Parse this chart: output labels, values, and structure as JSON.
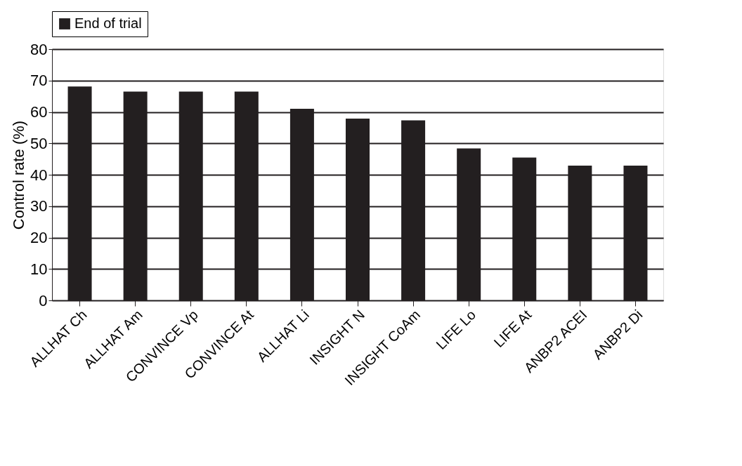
{
  "chart_data": {
    "type": "bar",
    "ylabel": "Control rate (%)",
    "categories": [
      "ALLHAT Ch",
      "ALLHAT Am",
      "CONVINCE Vp",
      "CONVINCE At",
      "ALLHAT Li",
      "INSIGHT N",
      "INSIGHT CoAm",
      "LIFE Lo",
      "LIFE At",
      "ANBP2 ACEI",
      "ANBP2 Di"
    ],
    "series": [
      {
        "name": "End of trial",
        "color": "#231f20",
        "values": [
          68.1,
          66.5,
          66.5,
          66.5,
          61.0,
          57.9,
          57.3,
          48.4,
          45.5,
          42.9,
          42.9
        ]
      }
    ],
    "ylim": [
      0,
      80
    ],
    "yticks": [
      0,
      10,
      20,
      30,
      40,
      50,
      60,
      70,
      80
    ],
    "grid": "y",
    "legend": "top"
  }
}
